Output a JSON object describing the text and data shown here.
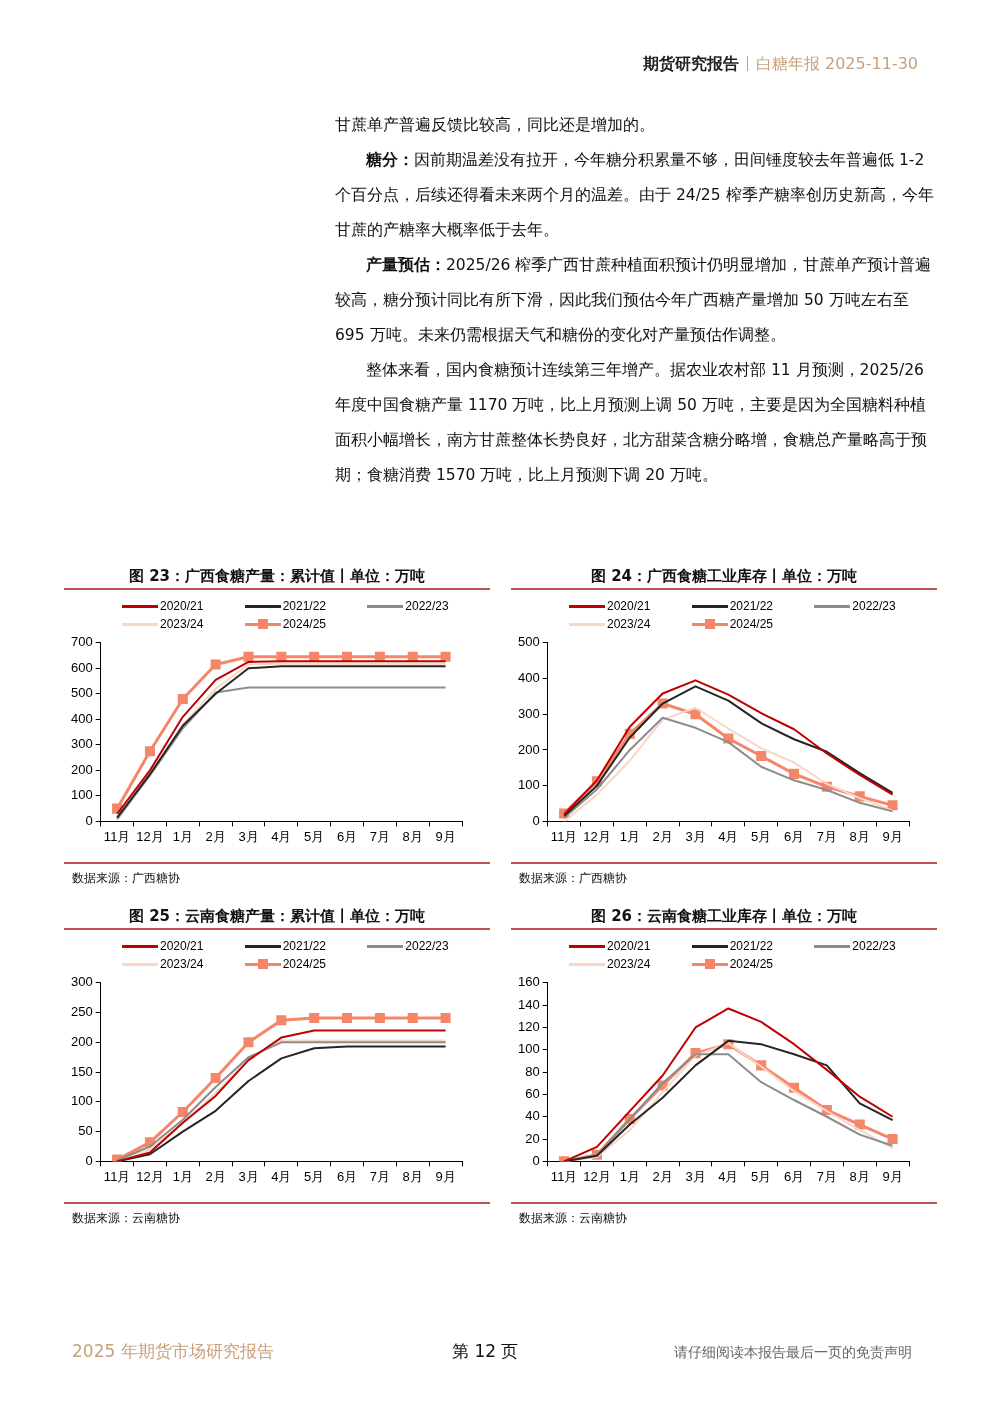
{
  "chart_data": [
    {
      "type": "other",
      "title": "期货研究报告",
      "subtitle": "白糖年报 2025-11-30",
      "annotations": [
        "甘蔗单产普遍反馈比较高，同比还是增加的。",
        "糖分：因前期温差没有拉开，今年糖分积累量不够，田间锤度较去年普遍低 1-2 个百分点，后续还得看未来两个月的温差。由于 24/25 榨季产糖率创历史新高，今年甘蔗的产糖率大概率低于去年。",
        "产量预估：2025/26 榨季广西甘蔗种植面积预计仍明显增加，甘蔗单产预计普遍较高，糖分预计同比有所下滑，因此我们预估今年广西糖产量增加 50 万吨左右至 695 万吨。未来仍需根据天气和糖份的变化对产量预估作调整。",
        "整体来看，国内食糖预计连续第三年增产。据农业农村部 11 月预测，2025/26 年度中国食糖产量 1170 万吨，比上月预测上调 50 万吨，主要是因为全国糖料种植面积小幅增长，南方甘蔗整体长势良好，北方甜菜含糖分略增，食糖总产量略高于预期；食糖消费 1570 万吨，比上月预测下调 20 万吨。"
      ]
    },
    {
      "type": "line",
      "title": "图 23：广西食糖产量：累计值丨单位：万吨",
      "categories": [
        "11月",
        "12月",
        "1月",
        "2月",
        "3月",
        "4月",
        "5月",
        "6月",
        "7月",
        "8月",
        "9月"
      ],
      "ylim": [
        0,
        700
      ],
      "yticks": [
        0,
        100,
        200,
        300,
        400,
        500,
        600,
        700
      ],
      "grid": false,
      "legend": "top",
      "annotations": [
        "数据来源：广西糖协"
      ],
      "series": [
        {
          "name": "2020/21",
          "color": "#c00000",
          "marker": "none",
          "values": [
            30,
            200,
            410,
            555,
            625,
            628,
            628,
            628,
            628,
            628,
            628
          ]
        },
        {
          "name": "2021/22",
          "color": "#262626",
          "marker": "none",
          "values": [
            15,
            185,
            375,
            500,
            600,
            608,
            608,
            608,
            608,
            608,
            608
          ]
        },
        {
          "name": "2022/23",
          "color": "#8c8c8c",
          "marker": "none",
          "values": [
            10,
            180,
            365,
            505,
            525,
            525,
            525,
            525,
            525,
            525,
            525
          ]
        },
        {
          "name": "2023/24",
          "color": "#fbd5c5",
          "marker": "none",
          "values": [
            5,
            185,
            380,
            520,
            615,
            618,
            618,
            618,
            618,
            618,
            618
          ]
        },
        {
          "name": "2024/25",
          "color": "#f4876a",
          "marker": "square",
          "values": [
            50,
            275,
            480,
            615,
            645,
            645,
            645,
            645,
            645,
            645,
            645
          ]
        }
      ]
    },
    {
      "type": "line",
      "title": "图 24：广西食糖工业库存丨单位：万吨",
      "categories": [
        "11月",
        "12月",
        "1月",
        "2月",
        "3月",
        "4月",
        "5月",
        "6月",
        "7月",
        "8月",
        "9月"
      ],
      "ylim": [
        0,
        500
      ],
      "yticks": [
        0,
        100,
        200,
        300,
        400,
        500
      ],
      "grid": false,
      "legend": "top",
      "annotations": [
        "数据来源：广西糖协"
      ],
      "series": [
        {
          "name": "2020/21",
          "color": "#c00000",
          "marker": "none",
          "values": [
            20,
            115,
            265,
            358,
            395,
            355,
            303,
            258,
            190,
            130,
            75
          ]
        },
        {
          "name": "2021/22",
          "color": "#262626",
          "marker": "none",
          "values": [
            15,
            100,
            235,
            330,
            378,
            338,
            275,
            230,
            195,
            135,
            80
          ]
        },
        {
          "name": "2022/23",
          "color": "#8c8c8c",
          "marker": "none",
          "values": [
            10,
            90,
            200,
            290,
            262,
            222,
            153,
            115,
            88,
            52,
            28
          ]
        },
        {
          "name": "2023/24",
          "color": "#fbd5c5",
          "marker": "none",
          "values": [
            0,
            75,
            170,
            285,
            318,
            260,
            205,
            165,
            105,
            65,
            30
          ]
        },
        {
          "name": "2024/25",
          "color": "#f4876a",
          "marker": "square",
          "values": [
            22,
            112,
            245,
            330,
            300,
            232,
            183,
            133,
            97,
            70,
            45
          ]
        }
      ]
    },
    {
      "type": "line",
      "title": "图 25：云南食糖产量：累计值丨单位：万吨",
      "categories": [
        "11月",
        "12月",
        "1月",
        "2月",
        "3月",
        "4月",
        "5月",
        "6月",
        "7月",
        "8月",
        "9月"
      ],
      "ylim": [
        0,
        300
      ],
      "yticks": [
        0,
        50,
        100,
        150,
        200,
        250,
        300
      ],
      "grid": false,
      "legend": "top",
      "annotations": [
        "数据来源：云南糖协"
      ],
      "series": [
        {
          "name": "2020/21",
          "color": "#c00000",
          "marker": "none",
          "values": [
            0,
            15,
            65,
            110,
            170,
            208,
            220,
            220,
            220,
            220,
            220
          ]
        },
        {
          "name": "2021/22",
          "color": "#262626",
          "marker": "none",
          "values": [
            0,
            12,
            50,
            85,
            135,
            173,
            190,
            193,
            193,
            193,
            193
          ]
        },
        {
          "name": "2022/23",
          "color": "#8c8c8c",
          "marker": "none",
          "values": [
            2,
            25,
            70,
            125,
            175,
            200,
            200,
            200,
            200,
            200,
            200
          ]
        },
        {
          "name": "2023/24",
          "color": "#fbd5c5",
          "marker": "none",
          "values": [
            0,
            20,
            65,
            115,
            172,
            203,
            203,
            203,
            203,
            203,
            203
          ]
        },
        {
          "name": "2024/25",
          "color": "#f4876a",
          "marker": "square",
          "values": [
            3,
            32,
            83,
            140,
            200,
            237,
            241,
            241,
            241,
            241,
            241
          ]
        }
      ]
    },
    {
      "type": "line",
      "title": "图 26：云南食糖工业库存丨单位：万吨",
      "categories": [
        "11月",
        "12月",
        "1月",
        "2月",
        "3月",
        "4月",
        "5月",
        "6月",
        "7月",
        "8月",
        "9月"
      ],
      "ylim": [
        0,
        160
      ],
      "yticks": [
        0,
        20,
        40,
        60,
        80,
        100,
        120,
        140,
        160
      ],
      "grid": false,
      "legend": "top",
      "annotations": [
        "数据来源：云南糖协"
      ],
      "series": [
        {
          "name": "2020/21",
          "color": "#c00000",
          "marker": "none",
          "values": [
            0,
            13,
            45,
            77,
            120,
            137,
            125,
            105,
            82,
            58,
            40
          ]
        },
        {
          "name": "2021/22",
          "color": "#262626",
          "marker": "none",
          "values": [
            0,
            5,
            33,
            57,
            86,
            108,
            105,
            96,
            86,
            52,
            37
          ]
        },
        {
          "name": "2022/23",
          "color": "#8c8c8c",
          "marker": "none",
          "values": [
            0,
            6,
            38,
            70,
            96,
            96,
            71,
            55,
            40,
            24,
            14
          ]
        },
        {
          "name": "2023/24",
          "color": "#fbd5c5",
          "marker": "none",
          "values": [
            0,
            4,
            28,
            62,
            95,
            106,
            85,
            63,
            45,
            28,
            12
          ]
        },
        {
          "name": "2024/25",
          "color": "#f4876a",
          "marker": "square",
          "values": [
            0,
            6,
            38,
            68,
            97,
            105,
            86,
            66,
            46,
            33,
            20
          ]
        }
      ]
    },
    {
      "type": "other",
      "annotations": [
        "2025 年期货市场研究报告",
        "第 12 页",
        "请仔细阅读本报告最后一页的免责声明"
      ]
    }
  ]
}
